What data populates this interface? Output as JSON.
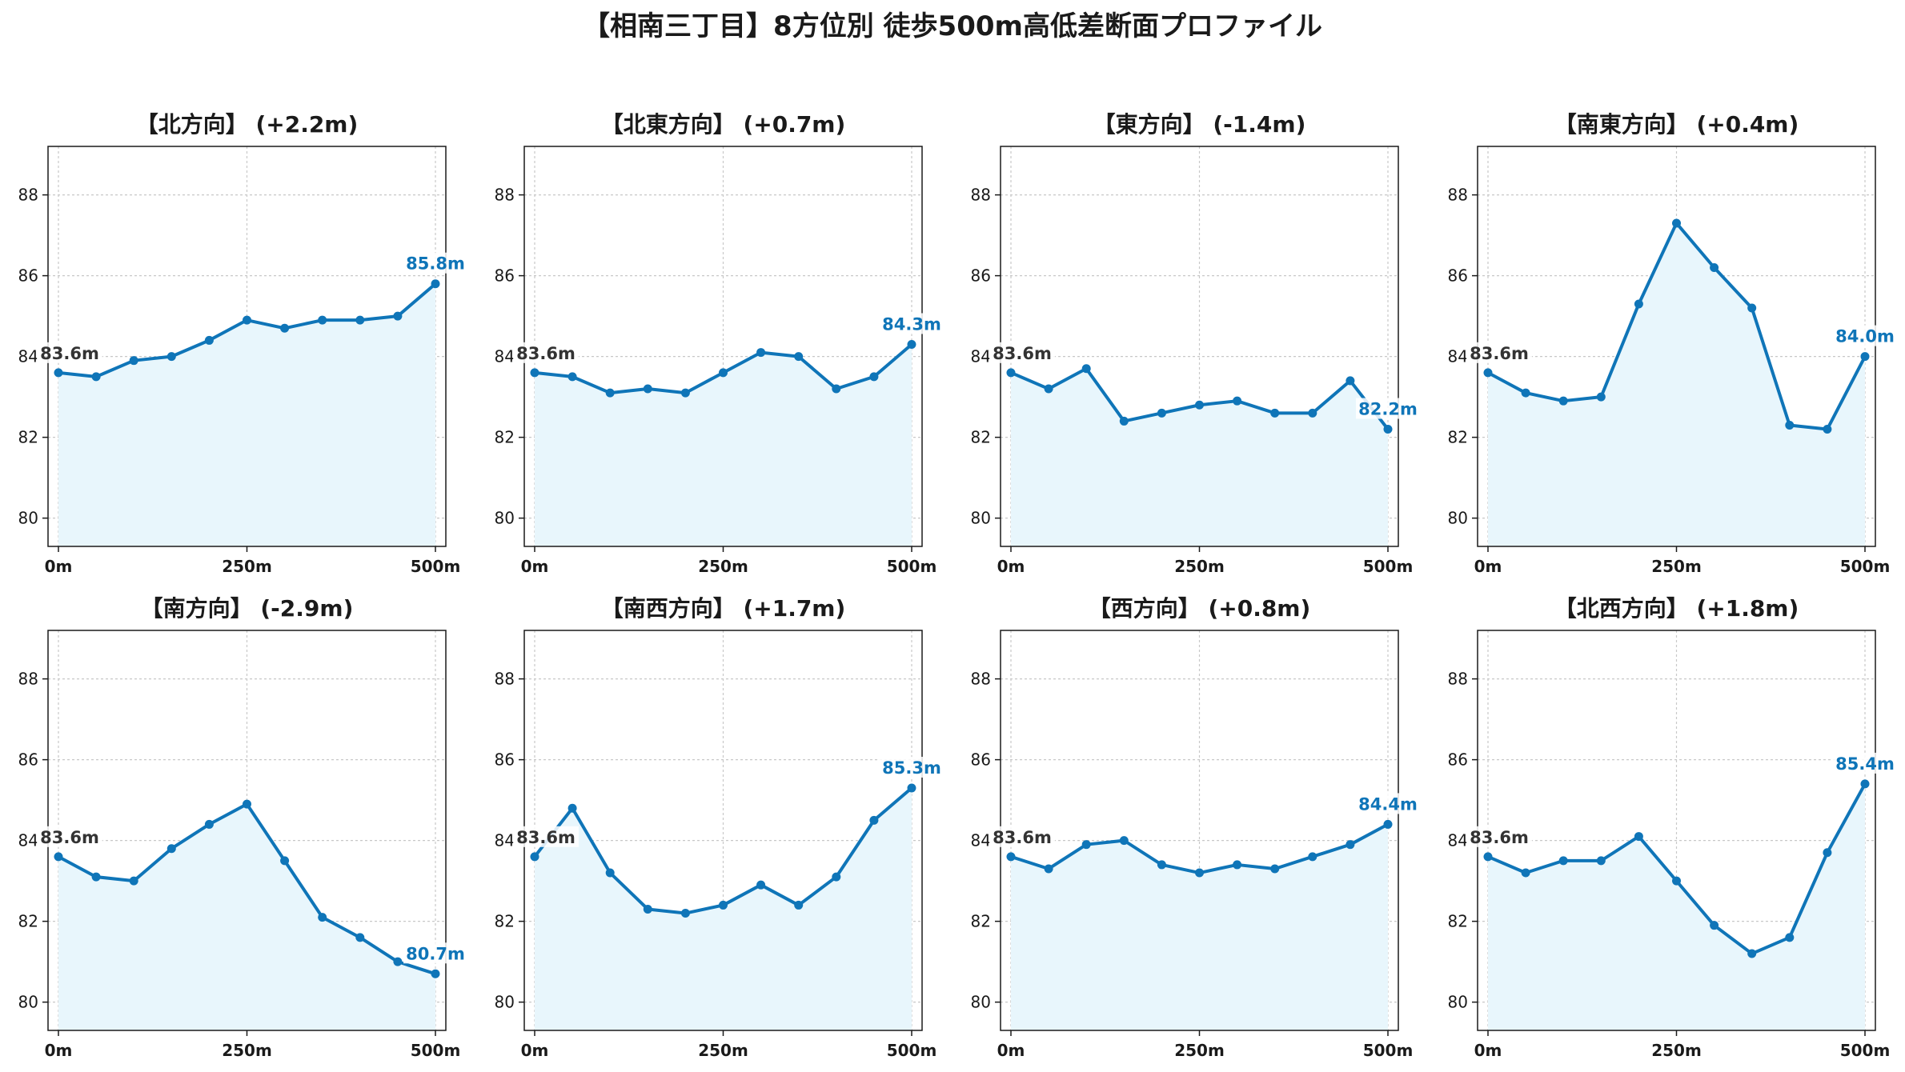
{
  "title": "【相南三丁目】8方位別 徒歩500m高低差断面プロファイル",
  "colors": {
    "line": "#0f75b8",
    "fill": "#e8f6fc",
    "grid": "#c8c8c8",
    "start_label": "#333333",
    "end_label": "#0f75b8"
  },
  "chart_data": [
    {
      "type": "area",
      "title": "【北方向】 (+2.2m)",
      "x": [
        0,
        50,
        100,
        150,
        200,
        250,
        300,
        350,
        400,
        450,
        500
      ],
      "values": [
        83.6,
        83.5,
        83.9,
        84.0,
        84.4,
        84.9,
        84.7,
        84.9,
        84.9,
        85.0,
        85.8
      ],
      "xticks": [
        "0m",
        "250m",
        "500m"
      ],
      "yticks": [
        "80",
        "82",
        "84",
        "86",
        "88"
      ],
      "ylim": [
        79.3,
        89.2
      ],
      "start_label": "83.6m",
      "end_label": "85.8m",
      "grid": true
    },
    {
      "type": "area",
      "title": "【北東方向】 (+0.7m)",
      "x": [
        0,
        50,
        100,
        150,
        200,
        250,
        300,
        350,
        400,
        450,
        500
      ],
      "values": [
        83.6,
        83.5,
        83.1,
        83.2,
        83.1,
        83.6,
        84.1,
        84.0,
        83.2,
        83.5,
        84.3
      ],
      "xticks": [
        "0m",
        "250m",
        "500m"
      ],
      "yticks": [
        "80",
        "82",
        "84",
        "86",
        "88"
      ],
      "ylim": [
        79.3,
        89.2
      ],
      "start_label": "83.6m",
      "end_label": "84.3m",
      "grid": true
    },
    {
      "type": "area",
      "title": "【東方向】 (-1.4m)",
      "x": [
        0,
        50,
        100,
        150,
        200,
        250,
        300,
        350,
        400,
        450,
        500
      ],
      "values": [
        83.6,
        83.2,
        83.7,
        82.4,
        82.6,
        82.8,
        82.9,
        82.6,
        82.6,
        83.4,
        82.2
      ],
      "xticks": [
        "0m",
        "250m",
        "500m"
      ],
      "yticks": [
        "80",
        "82",
        "84",
        "86",
        "88"
      ],
      "ylim": [
        79.3,
        89.2
      ],
      "start_label": "83.6m",
      "end_label": "82.2m",
      "grid": true
    },
    {
      "type": "area",
      "title": "【南東方向】 (+0.4m)",
      "x": [
        0,
        50,
        100,
        150,
        200,
        250,
        300,
        350,
        400,
        450,
        500
      ],
      "values": [
        83.6,
        83.1,
        82.9,
        83.0,
        85.3,
        87.3,
        86.2,
        85.2,
        82.3,
        82.2,
        84.0
      ],
      "xticks": [
        "0m",
        "250m",
        "500m"
      ],
      "yticks": [
        "80",
        "82",
        "84",
        "86",
        "88"
      ],
      "ylim": [
        79.3,
        89.2
      ],
      "start_label": "83.6m",
      "end_label": "84.0m",
      "grid": true
    },
    {
      "type": "area",
      "title": "【南方向】 (-2.9m)",
      "x": [
        0,
        50,
        100,
        150,
        200,
        250,
        300,
        350,
        400,
        450,
        500
      ],
      "values": [
        83.6,
        83.1,
        83.0,
        83.8,
        84.4,
        84.9,
        83.5,
        82.1,
        81.6,
        81.0,
        80.7
      ],
      "xticks": [
        "0m",
        "250m",
        "500m"
      ],
      "yticks": [
        "80",
        "82",
        "84",
        "86",
        "88"
      ],
      "ylim": [
        79.3,
        89.2
      ],
      "start_label": "83.6m",
      "end_label": "80.7m",
      "grid": true
    },
    {
      "type": "area",
      "title": "【南西方向】 (+1.7m)",
      "x": [
        0,
        50,
        100,
        150,
        200,
        250,
        300,
        350,
        400,
        450,
        500
      ],
      "values": [
        83.6,
        84.8,
        83.2,
        82.3,
        82.2,
        82.4,
        82.9,
        82.4,
        83.1,
        84.5,
        85.3
      ],
      "xticks": [
        "0m",
        "250m",
        "500m"
      ],
      "yticks": [
        "80",
        "82",
        "84",
        "86",
        "88"
      ],
      "ylim": [
        79.3,
        89.2
      ],
      "start_label": "83.6m",
      "end_label": "85.3m",
      "grid": true
    },
    {
      "type": "area",
      "title": "【西方向】 (+0.8m)",
      "x": [
        0,
        50,
        100,
        150,
        200,
        250,
        300,
        350,
        400,
        450,
        500
      ],
      "values": [
        83.6,
        83.3,
        83.9,
        84.0,
        83.4,
        83.2,
        83.4,
        83.3,
        83.6,
        83.9,
        84.4
      ],
      "xticks": [
        "0m",
        "250m",
        "500m"
      ],
      "yticks": [
        "80",
        "82",
        "84",
        "86",
        "88"
      ],
      "ylim": [
        79.3,
        89.2
      ],
      "start_label": "83.6m",
      "end_label": "84.4m",
      "grid": true
    },
    {
      "type": "area",
      "title": "【北西方向】 (+1.8m)",
      "x": [
        0,
        50,
        100,
        150,
        200,
        250,
        300,
        350,
        400,
        450,
        500
      ],
      "values": [
        83.6,
        83.2,
        83.5,
        83.5,
        84.1,
        83.0,
        81.9,
        81.2,
        81.6,
        83.7,
        85.4
      ],
      "xticks": [
        "0m",
        "250m",
        "500m"
      ],
      "yticks": [
        "80",
        "82",
        "84",
        "86",
        "88"
      ],
      "ylim": [
        79.3,
        89.2
      ],
      "start_label": "83.6m",
      "end_label": "85.4m",
      "grid": true
    }
  ]
}
